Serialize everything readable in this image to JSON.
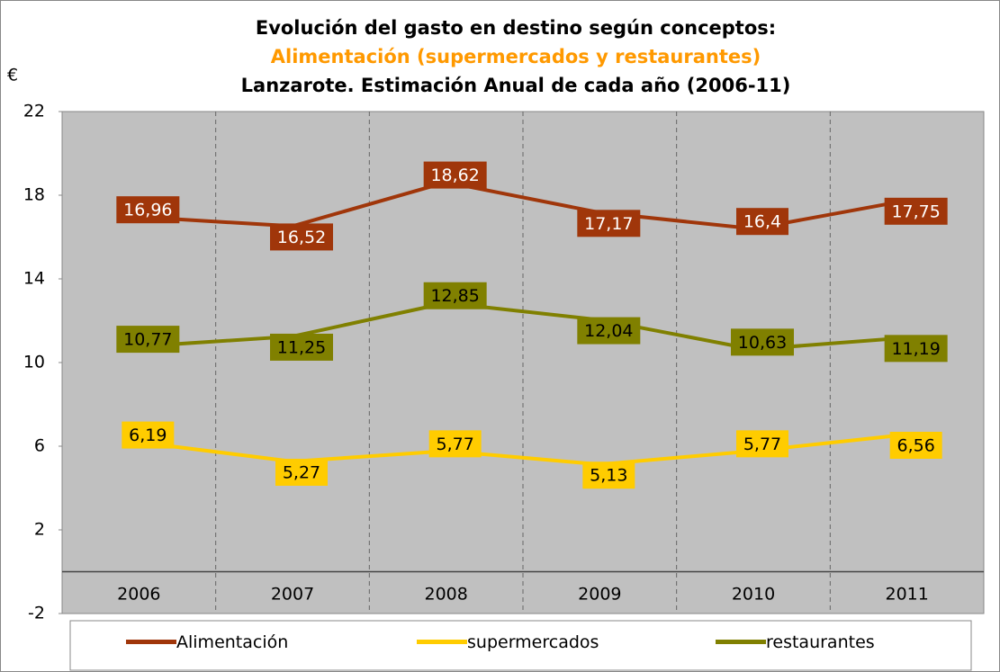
{
  "chart_data": {
    "type": "line",
    "title_lines": [
      "Evolución del gasto en destino según conceptos:",
      "Alimentación (supermercados y restaurantes)",
      "Lanzarote. Estimación Anual de cada año (2006-11)"
    ],
    "title_colors": [
      "#000000",
      "#ff9900",
      "#000000"
    ],
    "y_label": "€",
    "categories": [
      "2006",
      "2007",
      "2008",
      "2009",
      "2010",
      "2011"
    ],
    "series": [
      {
        "name": "Alimentación",
        "color": "#a0360a",
        "label_text_color": "#ffffff",
        "values": [
          16.96,
          16.52,
          18.62,
          17.17,
          16.4,
          17.75
        ],
        "value_labels": [
          "16,96",
          "16,52",
          "18,62",
          "17,17",
          "16,4",
          "17,75"
        ]
      },
      {
        "name": "supermercados",
        "color": "#ffcc00",
        "label_text_color": "#000000",
        "values": [
          6.19,
          5.27,
          5.77,
          5.13,
          5.77,
          6.56
        ],
        "value_labels": [
          "6,19",
          "5,27",
          "5,77",
          "5,13",
          "5,77",
          "6,56"
        ]
      },
      {
        "name": "restaurantes",
        "color": "#808000",
        "label_text_color": "#000000",
        "values": [
          10.77,
          11.25,
          12.85,
          12.04,
          10.63,
          11.19
        ],
        "value_labels": [
          "10,77",
          "11,25",
          "12,85",
          "12,04",
          "10,63",
          "11,19"
        ]
      }
    ],
    "ylim": [
      -2,
      22
    ],
    "yticks": [
      -2,
      2,
      6,
      10,
      14,
      18,
      22
    ],
    "plot_background": "#c0c0c0",
    "legend": "bottom"
  }
}
